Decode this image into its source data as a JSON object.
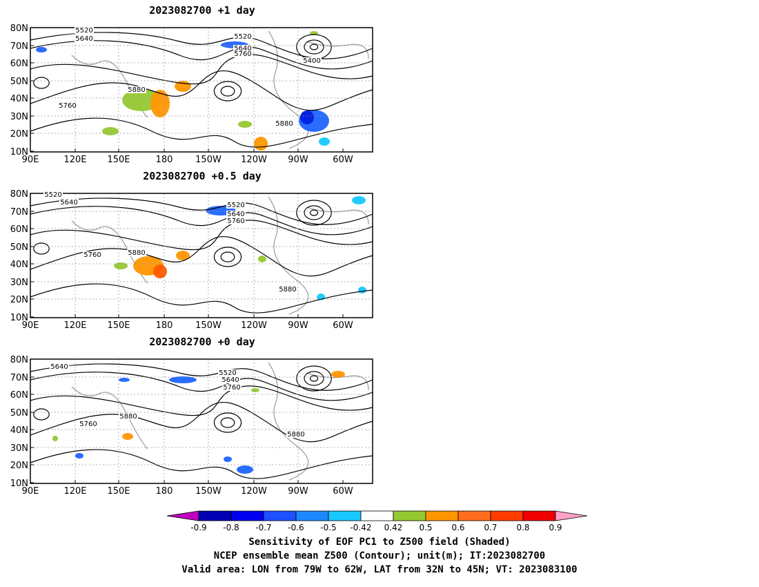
{
  "panels": [
    {
      "title": "2023082700  +1 day",
      "contour_labels": [
        "5520",
        "5640",
        "5520",
        "5640",
        "5760",
        "5400",
        "5880",
        "5760",
        "5880"
      ]
    },
    {
      "title": "2023082700  +0.5 day",
      "contour_labels": [
        "5520",
        "5640",
        "5520",
        "5640",
        "5760",
        "5760",
        "5880",
        "5880"
      ]
    },
    {
      "title": "2023082700  +0 day",
      "contour_labels": [
        "5640",
        "5520",
        "5640",
        "5760",
        "5880",
        "5760",
        "5880"
      ]
    }
  ],
  "axes": {
    "lat_labels": [
      "80N",
      "70N",
      "60N",
      "50N",
      "40N",
      "30N",
      "20N",
      "10N"
    ],
    "lon_labels": [
      "90E",
      "120E",
      "150E",
      "180",
      "150W",
      "120W",
      "90W",
      "60W"
    ]
  },
  "colorbar": {
    "ticks": [
      "-0.9",
      "-0.8",
      "-0.7",
      "-0.6",
      "-0.5",
      "-0.42",
      "0.42",
      "0.5",
      "0.6",
      "0.7",
      "0.8",
      "0.9"
    ],
    "colors": [
      "#c000c0",
      "#0000b4",
      "#0000f0",
      "#1e50ff",
      "#1e88ff",
      "#18c8ff",
      "#ffffff",
      "#96c832",
      "#ff9600",
      "#ff6e1e",
      "#ff3c00",
      "#f00000",
      "#ffa0c8"
    ]
  },
  "caption": {
    "line1": "Sensitivity of EOF PC1 to Z500 field (Shaded)",
    "line2": "NCEP ensemble mean Z500 (Contour); unit(m); IT:2023082700",
    "line3": "Valid area: LON from 79W to 62W, LAT from 32N to 45N; VT: 2023083100"
  }
}
